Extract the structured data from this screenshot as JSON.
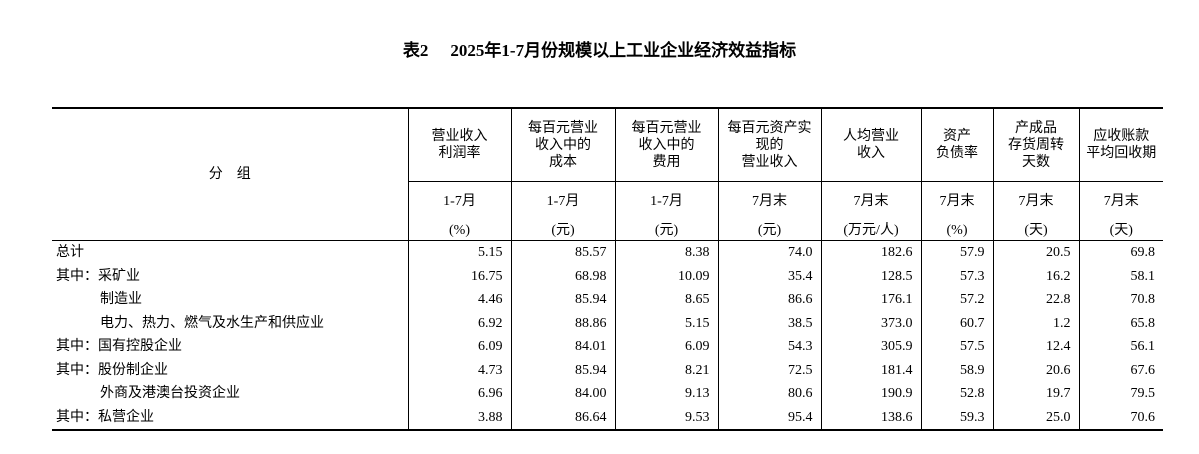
{
  "table_label": "表2",
  "title": "2025年1-7月份规模以上工业企业经济效益指标",
  "group_header": "分　组",
  "columns": [
    {
      "name": [
        "营业收入",
        "利润率"
      ],
      "period": "1-7月",
      "unit": "(%)"
    },
    {
      "name": [
        "每百元营业",
        "收入中的",
        "成本"
      ],
      "period": "1-7月",
      "unit": "(元)"
    },
    {
      "name": [
        "每百元营业",
        "收入中的",
        "费用"
      ],
      "period": "1-7月",
      "unit": "(元)"
    },
    {
      "name": [
        "每百元资产实",
        "现的",
        "营业收入"
      ],
      "period": "7月末",
      "unit": "(元)"
    },
    {
      "name": [
        "人均营业",
        "收入"
      ],
      "period": "7月末",
      "unit": "(万元/人)"
    },
    {
      "name": [
        "资产",
        "负债率"
      ],
      "period": "7月末",
      "unit": "(%)"
    },
    {
      "name": [
        "产成品",
        "存货周转",
        "天数"
      ],
      "period": "7月末",
      "unit": "(天)"
    },
    {
      "name": [
        "应收账款",
        "平均回收期"
      ],
      "period": "7月末",
      "unit": "(天)"
    }
  ],
  "rows": [
    {
      "label": "总计",
      "values": [
        "5.15",
        "85.57",
        "8.38",
        "74.0",
        "182.6",
        "57.9",
        "20.5",
        "69.8"
      ]
    },
    {
      "label": "其中：采矿业",
      "values": [
        "16.75",
        "68.98",
        "10.09",
        "35.4",
        "128.5",
        "57.3",
        "16.2",
        "58.1"
      ]
    },
    {
      "label": "制造业",
      "values": [
        "4.46",
        "85.94",
        "8.65",
        "86.6",
        "176.1",
        "57.2",
        "22.8",
        "70.8"
      ]
    },
    {
      "label": "电力、热力、燃气及水生产和供应业",
      "values": [
        "6.92",
        "88.86",
        "5.15",
        "38.5",
        "373.0",
        "60.7",
        "1.2",
        "65.8"
      ]
    },
    {
      "label": "其中：国有控股企业",
      "values": [
        "6.09",
        "84.01",
        "6.09",
        "54.3",
        "305.9",
        "57.5",
        "12.4",
        "56.1"
      ]
    },
    {
      "label": "其中：股份制企业",
      "values": [
        "4.73",
        "85.94",
        "8.21",
        "72.5",
        "181.4",
        "58.9",
        "20.6",
        "67.6"
      ]
    },
    {
      "label": "外商及港澳台投资企业",
      "values": [
        "6.96",
        "84.00",
        "9.13",
        "80.6",
        "190.9",
        "52.8",
        "19.7",
        "79.5"
      ]
    },
    {
      "label": "其中：私营企业",
      "values": [
        "3.88",
        "86.64",
        "9.53",
        "95.4",
        "138.6",
        "59.3",
        "25.0",
        "70.6"
      ]
    }
  ]
}
